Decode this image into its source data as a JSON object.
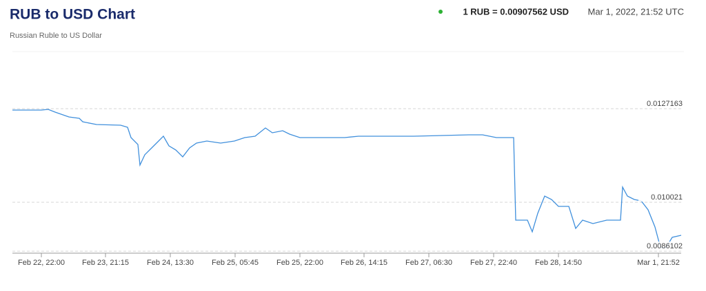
{
  "title": "RUB to USD Chart",
  "subtitle": "Russian Ruble to US Dollar",
  "rate": "1 RUB = 0.00907562 USD",
  "timestamp": "Mar 1, 2022, 21:52 UTC",
  "chart_data": {
    "type": "line",
    "color": "#3f8fdc",
    "grid": true,
    "xlim": [
      0,
      97
    ],
    "ylim": [
      0.0085541,
      0.0143614
    ],
    "xticks": [
      {
        "value": 4.2,
        "label": "Feb 22, 22:00"
      },
      {
        "value": 13.5,
        "label": "Feb 23, 21:15"
      },
      {
        "value": 22.9,
        "label": "Feb 24, 13:30"
      },
      {
        "value": 32.3,
        "label": "Feb 25, 05:45"
      },
      {
        "value": 41.7,
        "label": "Feb 25, 22:00"
      },
      {
        "value": 51,
        "label": "Feb 26, 14:15"
      },
      {
        "value": 60.4,
        "label": "Feb 27, 06:30"
      },
      {
        "value": 69.8,
        "label": "Feb 27, 22:40"
      },
      {
        "value": 79.2,
        "label": "Feb 28, 14:50"
      },
      {
        "value": 93.7,
        "label": "Mar 1, 21:52"
      }
    ],
    "yticks": [
      0.0127163,
      0.010021,
      0.0086102
    ],
    "x": [
      0,
      4.2,
      5.2,
      6.2,
      8.2,
      9.7,
      10.2,
      12.2,
      15.7,
      16.7,
      17.2,
      18.2,
      18.5,
      19.2,
      20.2,
      21.2,
      21.9,
      22.7,
      23.7,
      24.7,
      25.7,
      26.7,
      28.2,
      30.2,
      32.2,
      33.7,
      35.2,
      36.7,
      37.7,
      39.2,
      40.2,
      41.7,
      48.2,
      50.2,
      58.2,
      66.2,
      68.2,
      70.2,
      72.7,
      73,
      74.7,
      75.4,
      76.2,
      77.2,
      78.2,
      79.2,
      80.7,
      81.7,
      82.7,
      84.2,
      86.2,
      88.2,
      88.5,
      89.2,
      90.2,
      91.2,
      92.2,
      93.2,
      94,
      94.8,
      95.7,
      97
    ],
    "series": [
      {
        "name": "RUB/USD",
        "values": [
          0.012677,
          0.012677,
          0.012696,
          0.012617,
          0.012478,
          0.012439,
          0.01234,
          0.01226,
          0.012241,
          0.012181,
          0.011884,
          0.011686,
          0.011091,
          0.011389,
          0.011587,
          0.011785,
          0.011924,
          0.011646,
          0.011527,
          0.011329,
          0.011587,
          0.011725,
          0.011785,
          0.011725,
          0.011785,
          0.011884,
          0.011924,
          0.012161,
          0.012023,
          0.012082,
          0.011983,
          0.011884,
          0.011884,
          0.011924,
          0.011924,
          0.011963,
          0.011963,
          0.011884,
          0.011884,
          0.009506,
          0.009506,
          0.009169,
          0.009704,
          0.010199,
          0.0101,
          0.009902,
          0.009902,
          0.009268,
          0.009506,
          0.009407,
          0.009506,
          0.009506,
          0.010457,
          0.010199,
          0.0101,
          0.010061,
          0.009803,
          0.009307,
          0.008713,
          0.008713,
          0.00901,
          0.00907
        ]
      }
    ]
  }
}
